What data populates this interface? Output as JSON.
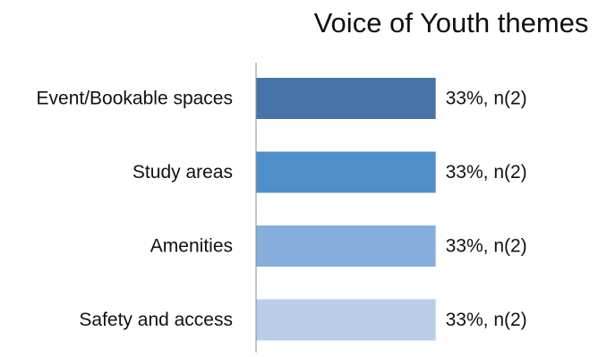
{
  "chart_data": {
    "type": "bar",
    "orientation": "horizontal",
    "title": "Voice of Youth themes",
    "categories": [
      "Event/Bookable spaces",
      "Study areas",
      "Amenities",
      "Safety and access"
    ],
    "series": [
      {
        "values": [
          33,
          33,
          33,
          33
        ],
        "data_labels": [
          "33%, n(2)",
          "33%, n(2)",
          "33%, n(2)",
          "33%, n(2)"
        ]
      }
    ],
    "xlim": [
      0,
      100
    ],
    "bar_colors": [
      "#4674a8",
      "#518fcb",
      "#86aedd",
      "#b9cde8"
    ],
    "axis_color": "#8c8c8c",
    "grid": false,
    "legend": "none"
  }
}
